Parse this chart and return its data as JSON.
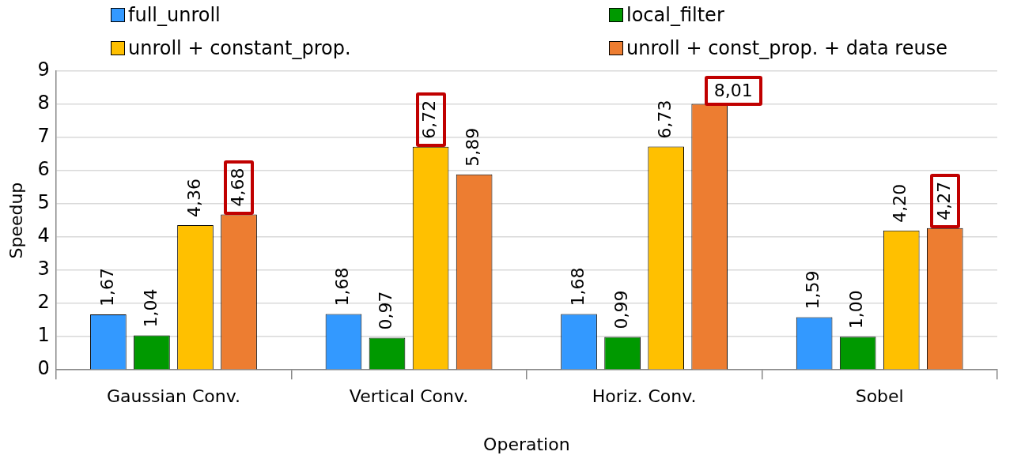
{
  "chart_data": {
    "type": "bar",
    "xlabel": "Operation",
    "ylabel": "Speedup",
    "categories": [
      "Gaussian Conv.",
      "Vertical Conv.",
      "Horiz. Conv.",
      "Sobel"
    ],
    "series": [
      {
        "name": "full_unroll",
        "color": "#3399ff",
        "values": [
          1.67,
          1.68,
          1.68,
          1.59
        ],
        "value_labels": [
          "1,67",
          "1,68",
          "1,68",
          "1,59"
        ]
      },
      {
        "name": "local_filter",
        "color": "#009900",
        "values": [
          1.04,
          0.97,
          0.99,
          1.0
        ],
        "value_labels": [
          "1,04",
          "0,97",
          "0,99",
          "1,00"
        ]
      },
      {
        "name": "unroll + constant_prop.",
        "color": "#ffc000",
        "values": [
          4.36,
          6.72,
          6.73,
          4.2
        ],
        "value_labels": [
          "4,36",
          "6,72",
          "6,73",
          "4,20"
        ]
      },
      {
        "name": "unroll + const_prop. + data reuse",
        "color": "#ed7d31",
        "values": [
          4.68,
          5.89,
          8.01,
          4.27
        ],
        "value_labels": [
          "4,68",
          "5,89",
          "8,01",
          "4,27"
        ]
      }
    ],
    "ylim": [
      0,
      9
    ],
    "yticks": [
      0,
      1,
      2,
      3,
      4,
      5,
      6,
      7,
      8,
      9
    ],
    "grid": "y",
    "legend": "top"
  }
}
